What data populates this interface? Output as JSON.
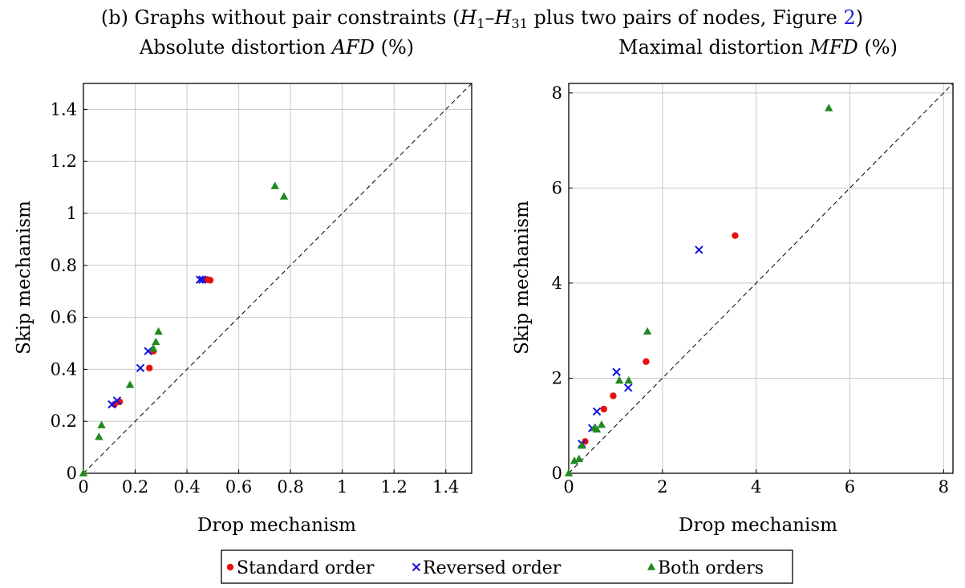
{
  "figure": {
    "caption_prefix": "(b) Graphs without pair constraints (",
    "caption_h1": "H",
    "caption_h1_sub": "1",
    "caption_dash": "–",
    "caption_h31": "H",
    "caption_h31_sub": "31",
    "caption_mid": " plus two pairs of nodes, Figure ",
    "caption_ref": "2",
    "caption_end": ")",
    "ref_color": "#1f1fd0"
  },
  "chart_data": [
    {
      "type": "scatter",
      "title_prefix": "Absolute distortion ",
      "title_metric": "AFD",
      "title_suffix": " (%)",
      "xlabel": "Drop mechanism",
      "ylabel": "Skip mechanism",
      "xlim": [
        0,
        1.5
      ],
      "ylim": [
        0,
        1.5
      ],
      "xticks": [
        0,
        0.2,
        0.4,
        0.6,
        0.8,
        1,
        1.2,
        1.4
      ],
      "yticks": [
        0,
        0.2,
        0.4,
        0.6,
        0.8,
        1,
        1.2,
        1.4
      ],
      "xtick_labels": [
        "0",
        "0.2",
        "0.4",
        "0.6",
        "0.8",
        "1",
        "1.2",
        "1.4"
      ],
      "ytick_labels": [
        "0",
        "0.2",
        "0.4",
        "0.6",
        "0.8",
        "1",
        "1.2",
        "1.4"
      ],
      "grid": true,
      "diagonal": true,
      "series": [
        {
          "name": "Standard order",
          "marker": "circle",
          "color": "#e81010",
          "points": [
            [
              0.12,
              0.265
            ],
            [
              0.14,
              0.275
            ],
            [
              0.255,
              0.405
            ],
            [
              0.27,
              0.47
            ],
            [
              0.47,
              0.745
            ],
            [
              0.48,
              0.745
            ],
            [
              0.49,
              0.743
            ]
          ]
        },
        {
          "name": "Reversed order",
          "marker": "x",
          "color": "#1010e0",
          "points": [
            [
              0.11,
              0.265
            ],
            [
              0.13,
              0.28
            ],
            [
              0.22,
              0.405
            ],
            [
              0.25,
              0.47
            ],
            [
              0.45,
              0.745
            ],
            [
              0.46,
              0.745
            ]
          ]
        },
        {
          "name": "Both orders",
          "marker": "triangle",
          "color": "#1f8a1f",
          "points": [
            [
              0,
              0
            ],
            [
              0.06,
              0.14
            ],
            [
              0.07,
              0.185
            ],
            [
              0.18,
              0.34
            ],
            [
              0.27,
              0.48
            ],
            [
              0.28,
              0.505
            ],
            [
              0.29,
              0.545
            ],
            [
              0.74,
              1.105
            ],
            [
              0.775,
              1.065
            ]
          ]
        }
      ]
    },
    {
      "type": "scatter",
      "title_prefix": "Maximal distortion ",
      "title_metric": "MFD",
      "title_suffix": " (%)",
      "xlabel": "Drop mechanism",
      "ylabel": "Skip mechanism",
      "xlim": [
        0,
        8.2
      ],
      "ylim": [
        0,
        8.2
      ],
      "xticks": [
        0,
        2,
        4,
        6,
        8
      ],
      "yticks": [
        0,
        2,
        4,
        6,
        8
      ],
      "xtick_labels": [
        "0",
        "2",
        "4",
        "6",
        "8"
      ],
      "ytick_labels": [
        "0",
        "2",
        "4",
        "6",
        "8"
      ],
      "grid": true,
      "diagonal": true,
      "series": [
        {
          "name": "Standard order",
          "marker": "circle",
          "color": "#e81010",
          "points": [
            [
              0.35,
              0.67
            ],
            [
              0.75,
              1.35
            ],
            [
              0.95,
              1.63
            ],
            [
              1.65,
              2.35
            ],
            [
              3.55,
              5.0
            ]
          ]
        },
        {
          "name": "Reversed order",
          "marker": "x",
          "color": "#1010e0",
          "points": [
            [
              0.28,
              0.62
            ],
            [
              0.5,
              0.95
            ],
            [
              0.6,
              1.3
            ],
            [
              1.02,
              2.13
            ],
            [
              1.27,
              1.8
            ],
            [
              2.78,
              4.7
            ]
          ]
        },
        {
          "name": "Both orders",
          "marker": "triangle",
          "color": "#1f8a1f",
          "points": [
            [
              0,
              0
            ],
            [
              0.12,
              0.26
            ],
            [
              0.22,
              0.3
            ],
            [
              0.28,
              0.58
            ],
            [
              0.55,
              0.95
            ],
            [
              0.6,
              0.92
            ],
            [
              0.7,
              1.02
            ],
            [
              1.08,
              1.95
            ],
            [
              1.28,
              1.95
            ],
            [
              1.68,
              2.98
            ],
            [
              5.55,
              7.68
            ]
          ]
        }
      ]
    }
  ],
  "legend": {
    "placement": "bottom-center",
    "entries": [
      {
        "label": "Standard order",
        "marker": "circle",
        "color": "#e81010"
      },
      {
        "label": "Reversed order",
        "marker": "x",
        "color": "#1010e0"
      },
      {
        "label": "Both orders",
        "marker": "triangle",
        "color": "#1f8a1f"
      }
    ]
  }
}
